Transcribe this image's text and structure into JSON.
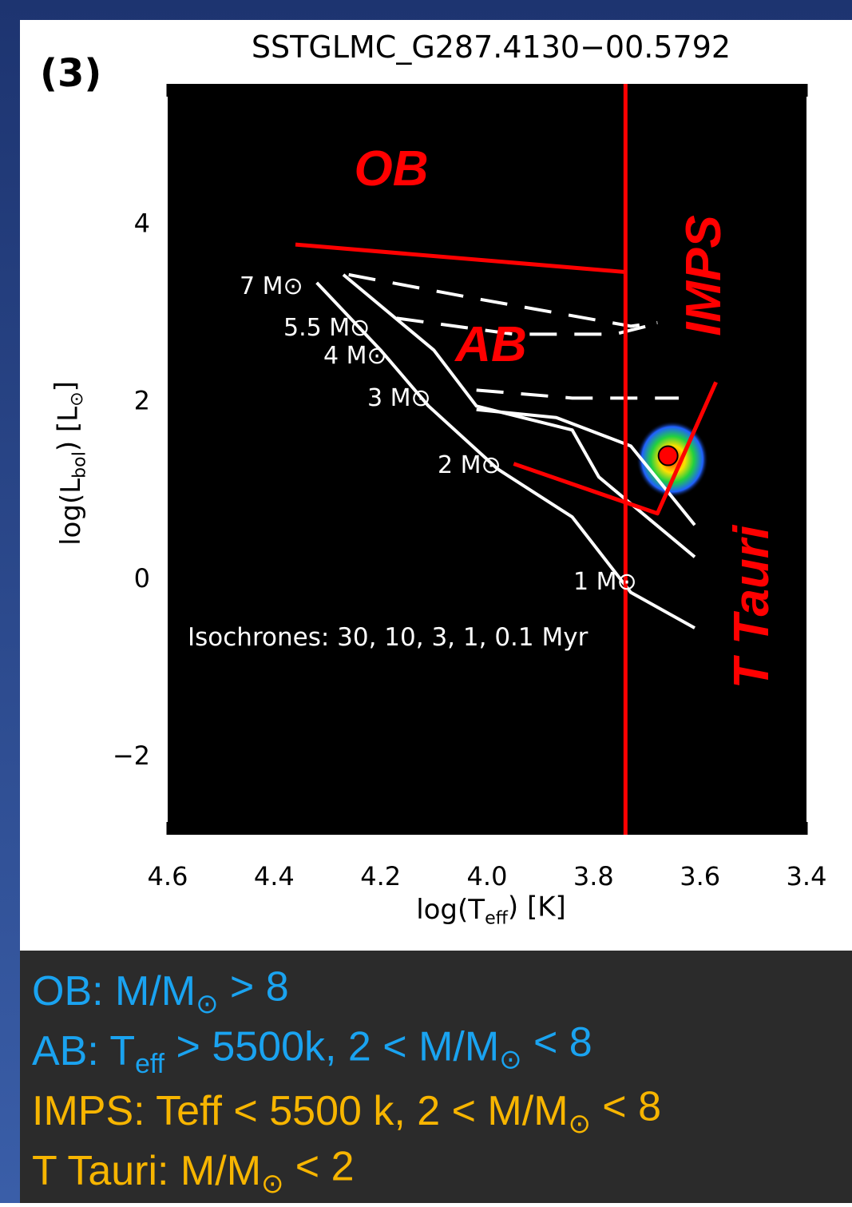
{
  "chart_data": {
    "type": "line",
    "panel_label": "(3)",
    "title": "SSTGLMC_G287.4130−00.5792",
    "x_label": [
      "log(T",
      "eff",
      ") [K]"
    ],
    "y_label": [
      "log(L",
      "bol",
      ") [L",
      "⊙",
      "]"
    ],
    "xlim": [
      4.6,
      3.4
    ],
    "ylim": [
      -2.89,
      5.57
    ],
    "xticks": [
      4.6,
      4.4,
      4.2,
      {
        "value": 4,
        "label": "4.0"
      },
      3.8,
      3.6,
      3.4
    ],
    "yticks": [
      {
        "value": -2,
        "label": "−2"
      },
      0,
      2,
      4
    ],
    "mass_labels": [
      "7 M⊙",
      "5.5 M⊙",
      "4 M⊙",
      "3 M⊙",
      "2 M⊙",
      "1 M⊙"
    ],
    "isochrone_note": "Isochrones: 30, 10, 3, 1, 0.1 Myr",
    "region_labels": [
      "OB",
      "AB",
      "IMPS",
      "T Tauri"
    ],
    "series": [
      {
        "kind": "line",
        "style": "solid",
        "color": "#ffffff",
        "x": [
          4.32,
          4.2,
          4.11,
          3.98,
          3.84,
          3.73,
          3.61
        ],
        "values": [
          3.33,
          2.57,
          1.94,
          1.23,
          0.69,
          -0.16,
          -0.56
        ]
      },
      {
        "kind": "line",
        "style": "solid",
        "color": "#ffffff",
        "x": [
          4.27,
          4.1,
          4.02,
          3.84,
          3.79,
          3.61
        ],
        "values": [
          3.42,
          2.57,
          1.94,
          1.67,
          1.14,
          0.24
        ]
      },
      {
        "kind": "line",
        "style": "solid",
        "color": "#ffffff",
        "x": [
          4.02,
          3.87,
          3.73,
          3.61
        ],
        "values": [
          1.9,
          1.81,
          1.49,
          0.6
        ]
      },
      {
        "kind": "line",
        "style": "dashed",
        "color": "#ffffff",
        "x": [
          4.26,
          4.02,
          3.73,
          3.68
        ],
        "values": [
          3.42,
          3.15,
          2.84,
          2.88
        ]
      },
      {
        "kind": "line",
        "style": "dashed",
        "color": "#ffffff",
        "x": [
          4.17,
          3.95,
          3.76,
          3.7
        ],
        "values": [
          2.93,
          2.75,
          2.75,
          2.84
        ]
      },
      {
        "kind": "line",
        "style": "dashed",
        "color": "#ffffff",
        "x": [
          4.02,
          3.84,
          3.64
        ],
        "values": [
          2.12,
          2.03,
          2.03
        ]
      },
      {
        "kind": "line",
        "style": "solid",
        "color": "#ff0000",
        "x": [
          3.74,
          3.74
        ],
        "values": [
          5.57,
          -2.89
        ]
      },
      {
        "kind": "line",
        "style": "solid",
        "color": "#ff0000",
        "x": [
          4.36,
          3.74
        ],
        "values": [
          3.76,
          3.45
        ]
      },
      {
        "kind": "line",
        "style": "solid",
        "color": "#ff0000",
        "x": [
          3.95,
          3.68,
          3.57
        ],
        "values": [
          1.29,
          0.73,
          2.21
        ]
      },
      {
        "kind": "point",
        "style": "solid",
        "color": "#ff0000",
        "x": [
          3.66
        ],
        "values": [
          1.38
        ]
      }
    ]
  },
  "legend_box": {
    "lines": [
      [
        "OB: M/M",
        "⊙",
        " > 8"
      ],
      [
        "AB: T",
        "eff",
        " > 5500k, 2 < M/M",
        "⊙",
        " < 8"
      ],
      [
        "IMPS: Teff < 5500 k, 2 < M/M",
        "⊙",
        " < 8"
      ],
      [
        "T Tauri: M/M",
        "⊙",
        " < 2"
      ]
    ],
    "colors": [
      "#1aa3f0",
      "#1aa3f0",
      "#f7b500",
      "#f7b500"
    ]
  }
}
